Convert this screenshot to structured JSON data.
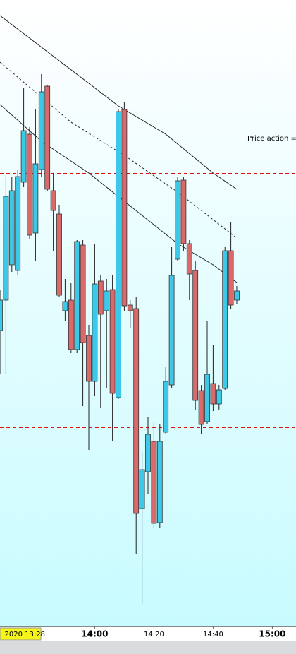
{
  "chart_data": {
    "type": "candlestick",
    "annotation": "Price action =",
    "cursor_label": "2020 13:28",
    "x": [
      "13:28",
      "13:30",
      "13:32",
      "13:34",
      "13:36",
      "13:38",
      "13:40",
      "13:42",
      "13:44",
      "13:46",
      "13:48",
      "13:50",
      "13:52",
      "13:54",
      "13:56",
      "13:58",
      "14:00",
      "14:02",
      "14:04",
      "14:06",
      "14:08",
      "14:10",
      "14:12",
      "14:14",
      "14:16",
      "14:18",
      "14:20",
      "14:22",
      "14:24",
      "14:26",
      "14:28",
      "14:30",
      "14:32",
      "14:34",
      "14:36",
      "14:38",
      "14:40",
      "14:42",
      "14:44",
      "14:46",
      "14:48"
    ],
    "open": [
      417,
      460,
      510,
      502,
      627,
      695,
      555,
      645,
      763,
      615,
      582,
      445,
      460,
      390,
      538,
      410,
      345,
      487,
      445,
      475,
      322,
      730,
      453,
      448,
      165,
      217,
      260,
      145,
      273,
      340,
      518,
      630,
      540,
      502,
      332,
      288,
      342,
      313,
      335,
      530,
      460
    ],
    "high": [
      475,
      635,
      635,
      645,
      760,
      705,
      730,
      780,
      765,
      640,
      595,
      490,
      485,
      545,
      545,
      425,
      540,
      495,
      490,
      495,
      730,
      740,
      460,
      465,
      245,
      295,
      288,
      285,
      365,
      535,
      635,
      635,
      545,
      515,
      340,
      430,
      397,
      340,
      535,
      570,
      480
    ],
    "low": [
      355,
      355,
      500,
      495,
      620,
      547,
      515,
      635,
      615,
      530,
      465,
      430,
      385,
      385,
      310,
      248,
      325,
      307,
      335,
      260,
      320,
      445,
      420,
      100,
      30,
      185,
      137,
      137,
      270,
      335,
      515,
      530,
      460,
      305,
      270,
      285,
      303,
      305,
      333,
      447,
      455
    ],
    "close": [
      460,
      607,
      615,
      635,
      700,
      552,
      653,
      755,
      617,
      587,
      467,
      458,
      390,
      543,
      400,
      345,
      483,
      440,
      473,
      328,
      727,
      452,
      445,
      158,
      220,
      270,
      144,
      260,
      345,
      495,
      629,
      540,
      497,
      318,
      284,
      355,
      313,
      333,
      530,
      453,
      473
    ],
    "up_color": "#3cc8e8",
    "down_color": "#d96a6c",
    "lines": [
      {
        "style": "solid",
        "x": [
          "13:28",
          "14:08",
          "14:24",
          "14:40",
          "14:48"
        ],
        "values": [
          863,
          735,
          695,
          640,
          617
        ]
      },
      {
        "style": "dashed",
        "x": [
          "13:28",
          "13:52",
          "14:10",
          "14:28",
          "14:48"
        ],
        "values": [
          797,
          712,
          665,
          613,
          548
        ]
      },
      {
        "style": "solid",
        "x": [
          "13:28",
          "13:42",
          "13:58",
          "14:10",
          "14:28",
          "14:40",
          "14:48"
        ],
        "values": [
          737,
          685,
          640,
          600,
          540,
          510,
          485
        ]
      }
    ],
    "levels": [
      639,
      280
    ],
    "level_color": "#e01010",
    "xlim": [
      "13:28",
      "15:08"
    ],
    "ylim": [
      0,
      885
    ],
    "xticks": [
      "14:00",
      "14:20",
      "14:40",
      "15:00"
    ]
  }
}
